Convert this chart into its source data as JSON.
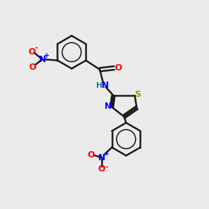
{
  "bg_color": "#ebebeb",
  "bond_color": "#1a1a1a",
  "bond_width": 1.8,
  "N_color": "#0000ff",
  "O_color": "#ff0000",
  "S_color": "#999900",
  "H_color": "#008888",
  "figsize": [
    3.0,
    3.0
  ],
  "dpi": 100,
  "xlim": [
    0,
    10
  ],
  "ylim": [
    0,
    10
  ]
}
